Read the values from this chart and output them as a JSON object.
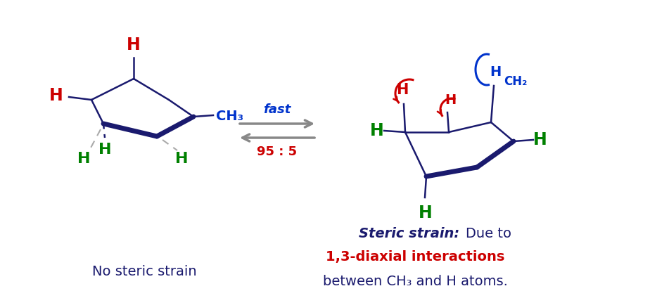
{
  "bg_color": "#ffffff",
  "dark_blue": "#1a1a6e",
  "red": "#cc0000",
  "green": "#008000",
  "blue": "#0033cc",
  "gray": "#aaaaaa",
  "arrow_gray": "#888888",
  "left_label": "No steric strain",
  "fast_label": "fast",
  "ratio_label": "95 : 5",
  "steric_bold": "Steric strain:",
  "due_to": " Due to",
  "red_line": "1,3-diaxial interactions",
  "last_line": "between CH₃ and H atoms.",
  "figsize": [
    9.24,
    4.24
  ],
  "dpi": 100,
  "lw_thin": 1.8,
  "lw_thick": 5.0
}
